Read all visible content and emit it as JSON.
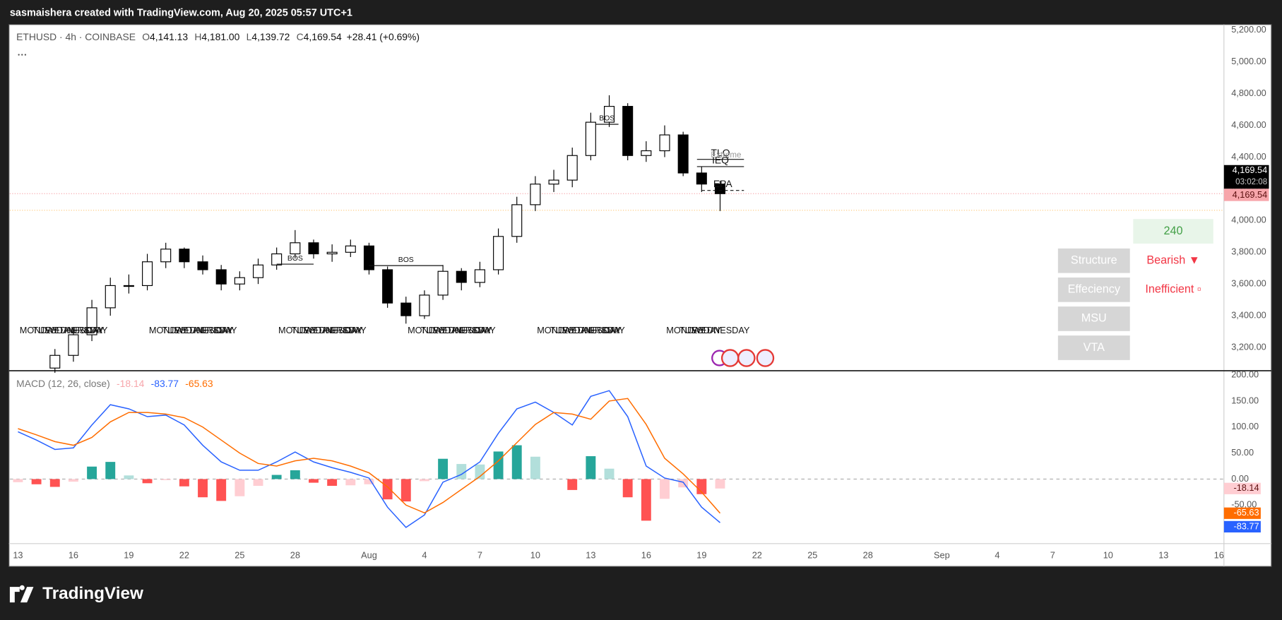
{
  "header": {
    "attribution": "sasmaishera created with TradingView.com, Aug 20, 2025 05:57 UTC+1",
    "logo": "TradingView"
  },
  "chart_data": [
    {
      "type": "candlestick",
      "symbol": "ETHUSD · 4h · COINBASE",
      "ohlc_legend": [
        {
          "key": "O",
          "label": "4,141.13"
        },
        {
          "key": "H",
          "label": "4,181.00"
        },
        {
          "key": "L",
          "label": "4,139.72"
        },
        {
          "key": "C",
          "label": "4,169.54"
        }
      ],
      "change": "+28.41 (+0.69%)",
      "x": [
        "2025-07-15",
        "2025-07-16",
        "2025-07-17",
        "2025-07-18",
        "2025-07-19",
        "2025-07-20",
        "2025-07-21",
        "2025-07-22",
        "2025-07-23",
        "2025-07-24",
        "2025-07-25",
        "2025-07-26",
        "2025-07-27",
        "2025-07-28",
        "2025-07-29",
        "2025-07-30",
        "2025-07-31",
        "2025-08-01",
        "2025-08-02",
        "2025-08-03",
        "2025-08-04",
        "2025-08-05",
        "2025-08-06",
        "2025-08-07",
        "2025-08-08",
        "2025-08-09",
        "2025-08-10",
        "2025-08-11",
        "2025-08-12",
        "2025-08-13",
        "2025-08-14",
        "2025-08-15",
        "2025-08-16",
        "2025-08-17",
        "2025-08-18",
        "2025-08-19",
        "2025-08-20"
      ],
      "open": [
        3070,
        3150,
        3280,
        3450,
        3590,
        3590,
        3740,
        3820,
        3740,
        3690,
        3600,
        3640,
        3720,
        3790,
        3860,
        3790,
        3800,
        3840,
        3690,
        3480,
        3400,
        3530,
        3680,
        3610,
        3690,
        3900,
        4100,
        4230,
        4255,
        4410,
        4620,
        4720,
        4410,
        4440,
        4540,
        4300,
        4230
      ],
      "high": [
        3190,
        3320,
        3500,
        3640,
        3660,
        3790,
        3860,
        3830,
        3780,
        3720,
        3680,
        3760,
        3830,
        3940,
        3880,
        3850,
        3880,
        3860,
        3710,
        3520,
        3560,
        3720,
        3700,
        3740,
        3950,
        4150,
        4280,
        4320,
        4460,
        4680,
        4790,
        4740,
        4500,
        4600,
        4560,
        4340,
        4250
      ],
      "low": [
        3040,
        3110,
        3240,
        3400,
        3540,
        3560,
        3700,
        3700,
        3660,
        3560,
        3560,
        3600,
        3690,
        3760,
        3760,
        3740,
        3770,
        3660,
        3450,
        3350,
        3380,
        3500,
        3560,
        3580,
        3660,
        3860,
        4060,
        4180,
        4210,
        4380,
        4590,
        4380,
        4370,
        4400,
        4280,
        4180,
        4060
      ],
      "close": [
        3150,
        3280,
        3450,
        3590,
        3590,
        3740,
        3820,
        3740,
        3690,
        3600,
        3640,
        3720,
        3790,
        3860,
        3790,
        3800,
        3840,
        3690,
        3480,
        3400,
        3530,
        3680,
        3610,
        3690,
        3900,
        4100,
        4230,
        4255,
        4410,
        4620,
        4720,
        4410,
        4440,
        4540,
        4300,
        4230,
        4169.54
      ],
      "up_color": "#ffffff",
      "down_color": "#000000",
      "wick_color": "#000000",
      "xlim": [
        "2025-07-12T13:24",
        "2025-09-16T06:28"
      ],
      "ylim": [
        3056,
        5236
      ],
      "yticks": [
        {
          "value": 3200,
          "label": "3,200.00"
        },
        {
          "value": 3400,
          "label": "3,400.00"
        },
        {
          "value": 3600,
          "label": "3,600.00"
        },
        {
          "value": 3800,
          "label": "3,800.00"
        },
        {
          "value": 4000,
          "label": "4,000.00"
        },
        {
          "value": 4200,
          "label": "4,200.00"
        },
        {
          "value": 4400,
          "label": "4,400.00"
        },
        {
          "value": 4600,
          "label": "4,600.00"
        },
        {
          "value": 4800,
          "label": "4,800.00"
        },
        {
          "value": 5000,
          "label": "5,000.00"
        },
        {
          "value": 5200,
          "label": "5,200.00"
        }
      ],
      "last_price": 4169.54,
      "last_price_labels": [
        "4,169.54",
        "03:02:08",
        "4,169.54"
      ],
      "hline": {
        "value": 4065,
        "color": "#ffcc80"
      },
      "annotations": [
        {
          "text": "BOS",
          "y": 3725,
          "x0": "2025-07-27",
          "x1": "2025-07-29"
        },
        {
          "text": "BOS",
          "y": 3716,
          "x0": "2025-08-01",
          "x1": "2025-08-05"
        },
        {
          "text": "BOS",
          "y": 4607,
          "x0": "2025-08-13T06:00",
          "x1": "2025-08-14T12:00"
        },
        {
          "text": "TLQ",
          "y": 4386,
          "x0": "2025-08-18T18:00",
          "x1": "2025-08-21T07:00"
        },
        {
          "text": "IEQ",
          "y": 4340,
          "x0": "2025-08-18T18:00",
          "x1": "2025-08-21T07:00"
        },
        {
          "text": "EPA",
          "y": 4190,
          "x0": "2025-08-19T00:00",
          "x1": "2025-08-21T07:00",
          "dashed": true
        }
      ],
      "extreme": {
        "text": "Extreme",
        "y": 4380,
        "x": "2025-08-19T12:00"
      },
      "weekday_groups": [
        {
          "x": "2025-07-13",
          "labels": [
            "MONDAY",
            "TUESDAY",
            "WEDNESDAY",
            "THURSDAY",
            "FRIDAY"
          ]
        },
        {
          "x": "2025-07-20",
          "labels": [
            "MONDAY",
            "TUESDAY",
            "WEDNESDAY",
            "THURSDAY",
            "FRIDAY"
          ]
        },
        {
          "x": "2025-07-27",
          "labels": [
            "MONDAY",
            "TUESDAY",
            "WEDNESDAY",
            "THURSDAY",
            "FRIDAY"
          ]
        },
        {
          "x": "2025-08-03",
          "labels": [
            "MONDAY",
            "TUESDAY",
            "WEDNESDAY",
            "THURSDAY",
            "FRIDAY"
          ]
        },
        {
          "x": "2025-08-10",
          "labels": [
            "MONDAY",
            "TUESDAY",
            "WEDNESDAY",
            "THURSDAY",
            "FRIDAY"
          ]
        },
        {
          "x": "2025-08-17",
          "labels": [
            "MONDAY",
            "TUESDAY",
            "WEDNESDAY"
          ]
        }
      ],
      "panel": {
        "timeframe": "240",
        "rows": [
          {
            "name": "Structure",
            "status": "Bearish ▼"
          },
          {
            "name": "Effeciency",
            "status": "Inefficient ▫"
          },
          {
            "name": "MSU"
          },
          {
            "name": "VTA"
          }
        ]
      }
    },
    {
      "type": "macd",
      "title": "MACD (12, 26, close)",
      "x": [
        "2025-07-13",
        "2025-07-14",
        "2025-07-15",
        "2025-07-16",
        "2025-07-17",
        "2025-07-18",
        "2025-07-19",
        "2025-07-20",
        "2025-07-21",
        "2025-07-22",
        "2025-07-23",
        "2025-07-24",
        "2025-07-25",
        "2025-07-26",
        "2025-07-27",
        "2025-07-28",
        "2025-07-29",
        "2025-07-30",
        "2025-07-31",
        "2025-08-01",
        "2025-08-02",
        "2025-08-03",
        "2025-08-04",
        "2025-08-05",
        "2025-08-06",
        "2025-08-07",
        "2025-08-08",
        "2025-08-09",
        "2025-08-10",
        "2025-08-11",
        "2025-08-12",
        "2025-08-13",
        "2025-08-14",
        "2025-08-15",
        "2025-08-16",
        "2025-08-17",
        "2025-08-18",
        "2025-08-19",
        "2025-08-20"
      ],
      "series": [
        {
          "name": "Histogram",
          "colors": [
            "#26a69a",
            "#b2dfdb",
            "#ffcdd2",
            "#ff5252"
          ],
          "last_label": "-18.14",
          "values": [
            -6,
            -10,
            -15,
            -5,
            24,
            33,
            7,
            -8,
            -2,
            -14,
            -35,
            -42,
            -33,
            -13,
            8,
            17,
            -7,
            -13,
            -12,
            -10,
            -39,
            -43,
            -4,
            39,
            29,
            28,
            53,
            65,
            43,
            0,
            -21,
            44,
            20,
            -35,
            -80,
            -38,
            -16,
            -29,
            -18.14
          ]
        },
        {
          "name": "MACD",
          "color": "#2962ff",
          "last_label": "-83.77",
          "values": [
            91,
            75,
            57,
            60,
            104,
            143,
            135,
            120,
            123,
            104,
            65,
            33,
            17,
            17,
            33,
            52,
            33,
            22,
            13,
            2,
            -54,
            -93,
            -69,
            -6,
            9,
            33,
            88,
            135,
            148,
            128,
            104,
            159,
            170,
            120,
            25,
            2,
            -6,
            -54,
            -83.77
          ]
        },
        {
          "name": "Signal",
          "color": "#ff6d00",
          "last_label": "-65.63",
          "values": [
            97,
            85,
            72,
            65,
            80,
            110,
            128,
            128,
            125,
            118,
            100,
            75,
            50,
            30,
            25,
            35,
            40,
            35,
            25,
            12,
            -15,
            -50,
            -65,
            -45,
            -20,
            5,
            35,
            70,
            105,
            128,
            125,
            115,
            150,
            155,
            105,
            40,
            10,
            -25,
            -65.63
          ]
        }
      ],
      "xlim": [
        "2025-07-12T13:24",
        "2025-09-16T06:28"
      ],
      "xticks": [
        {
          "value": "2025-07-13",
          "label": "13"
        },
        {
          "value": "2025-07-16",
          "label": "16"
        },
        {
          "value": "2025-07-19",
          "label": "19"
        },
        {
          "value": "2025-07-22",
          "label": "22"
        },
        {
          "value": "2025-07-25",
          "label": "25"
        },
        {
          "value": "2025-07-28",
          "label": "28"
        },
        {
          "value": "2025-08-01",
          "label": "Aug"
        },
        {
          "value": "2025-08-04",
          "label": "4"
        },
        {
          "value": "2025-08-07",
          "label": "7"
        },
        {
          "value": "2025-08-10",
          "label": "10"
        },
        {
          "value": "2025-08-13",
          "label": "13"
        },
        {
          "value": "2025-08-16",
          "label": "16"
        },
        {
          "value": "2025-08-19",
          "label": "19"
        },
        {
          "value": "2025-08-22",
          "label": "22"
        },
        {
          "value": "2025-08-25",
          "label": "25"
        },
        {
          "value": "2025-08-28",
          "label": "28"
        },
        {
          "value": "2025-09-01",
          "label": "Sep"
        },
        {
          "value": "2025-09-04",
          "label": "4"
        },
        {
          "value": "2025-09-07",
          "label": "7"
        },
        {
          "value": "2025-09-10",
          "label": "10"
        },
        {
          "value": "2025-09-13",
          "label": "13"
        },
        {
          "value": "2025-09-16",
          "label": "16"
        }
      ],
      "ylim": [
        -124,
        206
      ],
      "yticks": [
        {
          "value": -50,
          "label": "-50.00"
        },
        {
          "value": 0,
          "label": "0.00"
        },
        {
          "value": 50,
          "label": "50.00"
        },
        {
          "value": 100,
          "label": "100.00"
        },
        {
          "value": 150,
          "label": "150.00"
        },
        {
          "value": 200,
          "label": "200.00"
        }
      ]
    }
  ]
}
